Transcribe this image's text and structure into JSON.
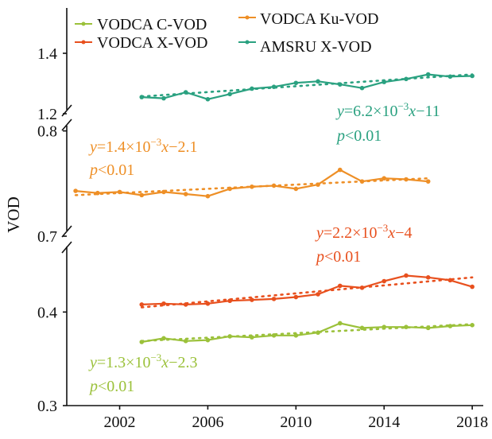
{
  "chart_data": {
    "type": "line",
    "ylabel": "VOD",
    "x_ticks": [
      "2002",
      "2006",
      "2010",
      "2014",
      "2018"
    ],
    "panels": [
      {
        "name": "top",
        "y_ticks": [
          "1.2",
          "1.4"
        ],
        "ylim": [
          1.2,
          1.55
        ],
        "series": [
          "amsru_x"
        ]
      },
      {
        "name": "middle",
        "y_ticks": [
          "0.7",
          "0.8"
        ],
        "ylim": [
          0.7,
          0.805
        ],
        "series": [
          "vodca_ku"
        ]
      },
      {
        "name": "bottom",
        "y_ticks": [
          "0.3",
          "0.4"
        ],
        "ylim": [
          0.3,
          0.47
        ],
        "series": [
          "vodca_c",
          "vodca_x"
        ]
      }
    ],
    "legend": [
      {
        "key": "vodca_c",
        "label": "VODCA C-VOD",
        "color": "#9bc13a"
      },
      {
        "key": "vodca_ku",
        "label": "VODCA Ku-VOD",
        "color": "#ee8f26"
      },
      {
        "key": "vodca_x",
        "label": "VODCA X-VOD",
        "color": "#e8501e"
      },
      {
        "key": "amsru_x",
        "label": "AMSRU X-VOD",
        "color": "#2aa180"
      }
    ],
    "series": {
      "amsru_x": {
        "color": "#2aa180",
        "x": [
          2003,
          2004,
          2005,
          2006,
          2007,
          2008,
          2009,
          2010,
          2011,
          2012,
          2013,
          2014,
          2015,
          2016,
          2017,
          2018
        ],
        "y": [
          1.255,
          1.251,
          1.271,
          1.248,
          1.265,
          1.283,
          1.289,
          1.302,
          1.307,
          1.297,
          1.285,
          1.305,
          1.315,
          1.33,
          1.323,
          1.325
        ],
        "trend": {
          "slope": 0.0062,
          "intercept": -11,
          "x0": 2003,
          "x1": 2018,
          "y0": 1.257,
          "y1": 1.33
        },
        "equation": {
          "y": "y",
          "eq": "=6.2×10",
          "exp": "−3",
          "x": "x",
          "rest": "−11",
          "p": "p",
          "pval": "<0.01"
        }
      },
      "vodca_ku": {
        "color": "#ee8f26",
        "x": [
          2000,
          2001,
          2002,
          2003,
          2004,
          2005,
          2006,
          2007,
          2008,
          2009,
          2010,
          2011,
          2012,
          2013,
          2014,
          2015,
          2016
        ],
        "y": [
          0.743,
          0.741,
          0.742,
          0.739,
          0.742,
          0.74,
          0.738,
          0.745,
          0.747,
          0.748,
          0.745,
          0.749,
          0.763,
          0.752,
          0.755,
          0.754,
          0.752
        ],
        "trend": {
          "slope": 0.0014,
          "intercept": -2.1,
          "x0": 2000,
          "x1": 2016,
          "y0": 0.739,
          "y1": 0.755
        },
        "equation": {
          "y": "y",
          "eq": "=1.4×10",
          "exp": "−3",
          "x": "x",
          "rest": "−2.1",
          "p": "p",
          "pval": "<0.01"
        }
      },
      "vodca_x": {
        "color": "#e8501e",
        "x": [
          2003,
          2004,
          2005,
          2006,
          2007,
          2008,
          2009,
          2010,
          2011,
          2012,
          2013,
          2014,
          2015,
          2016,
          2017,
          2018
        ],
        "y": [
          0.408,
          0.409,
          0.408,
          0.409,
          0.412,
          0.413,
          0.414,
          0.416,
          0.419,
          0.428,
          0.426,
          0.433,
          0.439,
          0.437,
          0.434,
          0.427
        ],
        "trend": {
          "slope": 0.0022,
          "intercept": -4,
          "x0": 2003,
          "x1": 2018,
          "y0": 0.405,
          "y1": 0.437
        },
        "equation": {
          "y": "y",
          "eq": "=2.2×10",
          "exp": "−3",
          "x": "x",
          "rest": "−4",
          "p": "p",
          "pval": "<0.01"
        }
      },
      "vodca_c": {
        "color": "#9bc13a",
        "x": [
          2003,
          2004,
          2005,
          2006,
          2007,
          2008,
          2009,
          2010,
          2011,
          2012,
          2013,
          2014,
          2015,
          2016,
          2017,
          2018
        ],
        "y": [
          0.368,
          0.372,
          0.369,
          0.37,
          0.374,
          0.373,
          0.375,
          0.375,
          0.378,
          0.388,
          0.383,
          0.384,
          0.384,
          0.383,
          0.385,
          0.386
        ],
        "trend": {
          "slope": 0.0013,
          "intercept": -2.3,
          "x0": 2003,
          "x1": 2018,
          "y0": 0.369,
          "y1": 0.387
        },
        "equation": {
          "y": "y",
          "eq": "=1.3×10",
          "exp": "−3",
          "x": "x",
          "rest": "−2.3",
          "p": "p",
          "pval": "<0.01"
        }
      }
    },
    "xlim": [
      1999.6,
      2018.5
    ],
    "grid": false,
    "legend_position": "top-left"
  }
}
